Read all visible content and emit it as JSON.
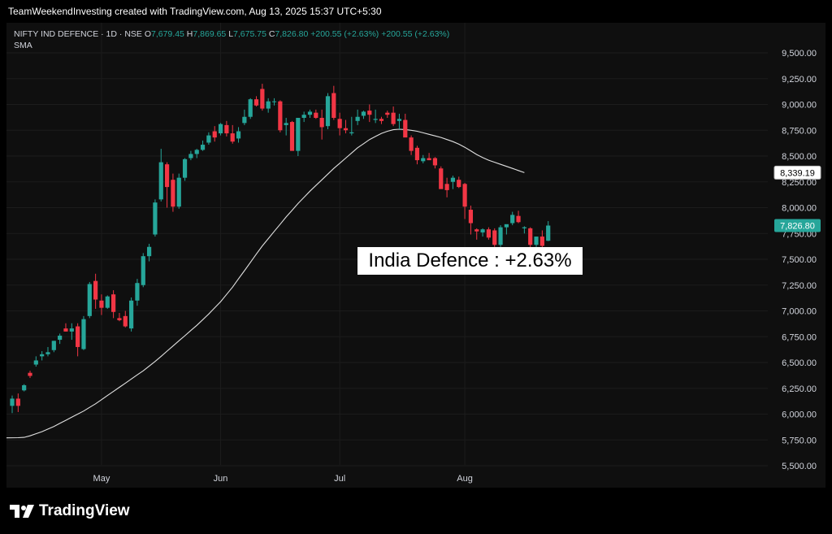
{
  "header": {
    "attribution": "TeamWeekendInvesting created with TradingView.com, Aug 13, 2025 15:37 UTC+5:30"
  },
  "legend": {
    "symbol": "NIFTY IND DEFENCE · 1D · NSE",
    "open_label": "O",
    "open": "7,679.45",
    "high_label": "H",
    "high": "7,869.65",
    "low_label": "L",
    "low": "7,675.75",
    "close_label": "C",
    "close": "7,826.80",
    "change": "+200.55 (+2.63%)",
    "change2": "+200.55 (+2.63%)",
    "indicator": "SMA"
  },
  "annotation": "India Defence : +2.63%",
  "price_tags": {
    "sma": "8,339.19",
    "last": "7,826.80"
  },
  "footer": {
    "brand": "TradingView"
  },
  "colors": {
    "up": "#26a69a",
    "down": "#f23645",
    "sma": "#e0e0e0",
    "grid": "#1c1c1c",
    "axis_text": "#d1d4dc"
  },
  "chart_data": {
    "type": "candlestick",
    "title": "",
    "ylim": [
      5300,
      9600
    ],
    "y_ticks": [
      "5,500.00",
      "5,750.00",
      "6,000.00",
      "6,250.00",
      "6,500.00",
      "6,750.00",
      "7,000.00",
      "7,250.00",
      "7,500.00",
      "7,750.00",
      "8,000.00",
      "8,250.00",
      "8,500.00",
      "8,750.00",
      "9,000.00",
      "9,250.00",
      "9,500.00"
    ],
    "y_tick_values": [
      5500,
      5750,
      6000,
      6250,
      6500,
      6750,
      7000,
      7250,
      7500,
      7750,
      8000,
      8250,
      8500,
      8750,
      9000,
      9250,
      9500
    ],
    "x_ticks": [
      {
        "label": "May",
        "index": 15
      },
      {
        "label": "Jun",
        "index": 35
      },
      {
        "label": "Jul",
        "index": 55
      },
      {
        "label": "Aug",
        "index": 76
      }
    ],
    "candles": [
      [
        6080,
        6180,
        6010,
        6150
      ],
      [
        6150,
        6200,
        6020,
        6080
      ],
      [
        6230,
        6290,
        6220,
        6280
      ],
      [
        6400,
        6420,
        6350,
        6370
      ],
      [
        6480,
        6560,
        6460,
        6520
      ],
      [
        6560,
        6610,
        6520,
        6580
      ],
      [
        6580,
        6650,
        6560,
        6600
      ],
      [
        6620,
        6710,
        6600,
        6710
      ],
      [
        6720,
        6780,
        6680,
        6760
      ],
      [
        6830,
        6880,
        6800,
        6800
      ],
      [
        6800,
        6880,
        6720,
        6830
      ],
      [
        6850,
        6880,
        6560,
        6650
      ],
      [
        6630,
        6950,
        6620,
        6920
      ],
      [
        6950,
        7280,
        6930,
        7260
      ],
      [
        7290,
        7360,
        7020,
        7110
      ],
      [
        7100,
        7160,
        6960,
        7030
      ],
      [
        7030,
        7150,
        7020,
        7140
      ],
      [
        7160,
        7200,
        6930,
        6990
      ],
      [
        6930,
        6980,
        6900,
        6910
      ],
      [
        6950,
        7000,
        6840,
        6850
      ],
      [
        6830,
        7130,
        6800,
        7100
      ],
      [
        7100,
        7310,
        7050,
        7270
      ],
      [
        7250,
        7560,
        7230,
        7530
      ],
      [
        7530,
        7650,
        7480,
        7620
      ],
      [
        7740,
        8080,
        7720,
        8050
      ],
      [
        8080,
        8570,
        8060,
        8440
      ],
      [
        8420,
        8440,
        8000,
        8200
      ],
      [
        8270,
        8330,
        7960,
        8010
      ],
      [
        8010,
        8330,
        7990,
        8290
      ],
      [
        8290,
        8480,
        8260,
        8470
      ],
      [
        8480,
        8550,
        8460,
        8520
      ],
      [
        8520,
        8570,
        8480,
        8560
      ],
      [
        8560,
        8650,
        8550,
        8610
      ],
      [
        8630,
        8730,
        8610,
        8700
      ],
      [
        8740,
        8790,
        8640,
        8680
      ],
      [
        8720,
        8820,
        8700,
        8810
      ],
      [
        8800,
        8840,
        8690,
        8720
      ],
      [
        8720,
        8800,
        8620,
        8640
      ],
      [
        8670,
        8780,
        8630,
        8740
      ],
      [
        8820,
        8950,
        8800,
        8880
      ],
      [
        8880,
        9060,
        8860,
        9050
      ],
      [
        9050,
        9080,
        8980,
        8990
      ],
      [
        9150,
        9200,
        8940,
        8960
      ],
      [
        8960,
        9060,
        8920,
        9030
      ],
      [
        9030,
        9060,
        8990,
        9030
      ],
      [
        9030,
        9040,
        8730,
        8750
      ],
      [
        8800,
        8870,
        8700,
        8820
      ],
      [
        8830,
        8840,
        8560,
        8550
      ],
      [
        8550,
        8870,
        8500,
        8870
      ],
      [
        8870,
        8930,
        8830,
        8900
      ],
      [
        8900,
        8950,
        8870,
        8930
      ],
      [
        8920,
        8950,
        8860,
        8870
      ],
      [
        8870,
        8950,
        8660,
        8780
      ],
      [
        8790,
        9110,
        8760,
        9080
      ],
      [
        9110,
        9180,
        8850,
        8870
      ],
      [
        8860,
        8920,
        8700,
        8770
      ],
      [
        8770,
        8850,
        8720,
        8750
      ],
      [
        8720,
        8880,
        8700,
        8730
      ],
      [
        8840,
        8950,
        8800,
        8880
      ],
      [
        8890,
        8940,
        8860,
        8930
      ],
      [
        8940,
        9000,
        8830,
        8900
      ],
      [
        8850,
        8950,
        8820,
        8860
      ],
      [
        8860,
        8880,
        8810,
        8840
      ],
      [
        8920,
        8940,
        8870,
        8900
      ],
      [
        8920,
        8980,
        8790,
        8810
      ],
      [
        8840,
        8910,
        8760,
        8860
      ],
      [
        8850,
        8910,
        8690,
        8680
      ],
      [
        8680,
        8700,
        8510,
        8550
      ],
      [
        8580,
        8600,
        8420,
        8460
      ],
      [
        8450,
        8510,
        8430,
        8480
      ],
      [
        8480,
        8530,
        8460,
        8460
      ],
      [
        8480,
        8490,
        8380,
        8410
      ],
      [
        8380,
        8400,
        8200,
        8180
      ],
      [
        8230,
        8290,
        8100,
        8170
      ],
      [
        8250,
        8310,
        8180,
        8290
      ],
      [
        8270,
        8300,
        8190,
        8200
      ],
      [
        8230,
        8240,
        7890,
        8010
      ],
      [
        7980,
        8020,
        7740,
        7850
      ],
      [
        7790,
        7800,
        7690,
        7770
      ],
      [
        7760,
        7800,
        7720,
        7790
      ],
      [
        7790,
        7810,
        7690,
        7710
      ],
      [
        7780,
        7800,
        7620,
        7640
      ],
      [
        7640,
        7830,
        7620,
        7810
      ],
      [
        7810,
        7830,
        7740,
        7840
      ],
      [
        7850,
        7960,
        7830,
        7930
      ],
      [
        7920,
        7970,
        7850,
        7860
      ],
      [
        7800,
        7820,
        7750,
        7810
      ],
      [
        7800,
        7810,
        7600,
        7640
      ],
      [
        7640,
        7720,
        7620,
        7720
      ],
      [
        7720,
        7780,
        7590,
        7630
      ],
      [
        7679.45,
        7869.65,
        7675.75,
        7826.8
      ]
    ],
    "sma_series": {
      "name": "SMA",
      "start_index": 0,
      "values": [
        5770,
        5772,
        5775,
        5790,
        5810,
        5830,
        5855,
        5880,
        5910,
        5940,
        5970,
        6000,
        6030,
        6065,
        6100,
        6140,
        6180,
        6220,
        6260,
        6300,
        6340,
        6380,
        6420,
        6465,
        6510,
        6560,
        6610,
        6660,
        6710,
        6760,
        6810,
        6860,
        6915,
        6970,
        7030,
        7090,
        7160,
        7230,
        7310,
        7390,
        7470,
        7550,
        7630,
        7700,
        7770,
        7840,
        7910,
        7975,
        8040,
        8100,
        8160,
        8215,
        8270,
        8325,
        8380,
        8430,
        8480,
        8530,
        8580,
        8620,
        8660,
        8690,
        8720,
        8740,
        8755,
        8760,
        8757,
        8750,
        8740,
        8725,
        8710,
        8695,
        8680,
        8660,
        8640,
        8615,
        8585,
        8550,
        8515,
        8485,
        8460,
        8440,
        8420,
        8400,
        8380,
        8360,
        8339.19
      ]
    }
  }
}
